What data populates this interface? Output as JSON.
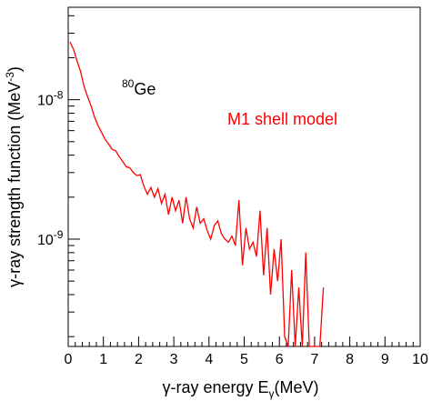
{
  "chart_data": {
    "type": "line",
    "xlabel": {
      "prefix": "γ-ray energy E",
      "sub": "γ",
      "suffix": "(MeV)"
    },
    "ylabel": {
      "prefix": "γ-ray strength function (MeV",
      "sup": "-3",
      "suffix": ")"
    },
    "xlim": [
      0,
      10
    ],
    "ylim": [
      1.7e-10,
      4.6e-08
    ],
    "y_scale": "log",
    "grid": false,
    "x_ticks": [
      {
        "v": 0,
        "label": "0"
      },
      {
        "v": 1,
        "label": "1"
      },
      {
        "v": 2,
        "label": "2"
      },
      {
        "v": 3,
        "label": "3"
      },
      {
        "v": 4,
        "label": "4"
      },
      {
        "v": 5,
        "label": "5"
      },
      {
        "v": 6,
        "label": "6"
      },
      {
        "v": 7,
        "label": "7"
      },
      {
        "v": 8,
        "label": "8"
      },
      {
        "v": 9,
        "label": "9"
      },
      {
        "v": 10,
        "label": "10"
      }
    ],
    "y_ticks": [
      {
        "v": 1e-09,
        "label_base": "10",
        "label_exp": "-9"
      },
      {
        "v": 1e-08,
        "label_base": "10",
        "label_exp": "-8"
      }
    ],
    "annotations": [
      {
        "sup": "80",
        "text": "Ge",
        "color": "#000000"
      },
      {
        "text": "M1 shell model",
        "color": "#ff0000"
      }
    ],
    "series": [
      {
        "color": "#ff0000",
        "x": [
          0.05,
          0.15,
          0.25,
          0.35,
          0.45,
          0.55,
          0.65,
          0.75,
          0.85,
          0.95,
          1.05,
          1.15,
          1.25,
          1.35,
          1.45,
          1.55,
          1.65,
          1.75,
          1.85,
          1.95,
          2.05,
          2.15,
          2.25,
          2.35,
          2.45,
          2.55,
          2.65,
          2.75,
          2.85,
          2.95,
          3.05,
          3.15,
          3.25,
          3.35,
          3.45,
          3.55,
          3.65,
          3.75,
          3.85,
          3.95,
          4.05,
          4.15,
          4.25,
          4.35,
          4.45,
          4.55,
          4.65,
          4.75,
          4.85,
          4.95,
          5.05,
          5.15,
          5.25,
          5.35,
          5.45,
          5.55,
          5.65,
          5.75,
          5.85,
          5.95,
          6.05,
          6.15,
          6.25,
          6.35,
          6.45,
          6.55,
          6.65,
          6.75,
          6.85,
          6.95,
          7.05,
          7.15,
          7.25
        ],
        "y": [
          2.6e-08,
          2.3e-08,
          1.9e-08,
          1.6e-08,
          1.25e-08,
          1.05e-08,
          9e-09,
          7.5e-09,
          6.5e-09,
          5.8e-09,
          5.2e-09,
          4.8e-09,
          4.4e-09,
          4.3e-09,
          3.9e-09,
          3.6e-09,
          3.3e-09,
          3.25e-09,
          3e-09,
          2.85e-09,
          2.9e-09,
          2.4e-09,
          2.1e-09,
          2.35e-09,
          2e-09,
          2.3e-09,
          1.8e-09,
          2.1e-09,
          1.5e-09,
          2e-09,
          1.6e-09,
          1.9e-09,
          1.3e-09,
          2e-09,
          1.4e-09,
          1.2e-09,
          1.7e-09,
          1.3e-09,
          1.4e-09,
          1.15e-09,
          1e-09,
          1.25e-09,
          1.35e-09,
          1.1e-09,
          1e-09,
          9.5e-10,
          1.05e-09,
          9e-10,
          1.9e-09,
          6.5e-10,
          1.2e-09,
          8.5e-10,
          9.5e-10,
          7.5e-10,
          1.6e-09,
          5.5e-10,
          1.2e-09,
          4e-10,
          8.5e-10,
          5e-10,
          1e-09,
          2e-10,
          1.7e-10,
          6e-10,
          1.7e-10,
          4.5e-10,
          1.7e-10,
          8e-10,
          1.7e-10,
          1.7e-10,
          1.7e-10,
          1.7e-10,
          4.5e-10
        ]
      }
    ]
  }
}
